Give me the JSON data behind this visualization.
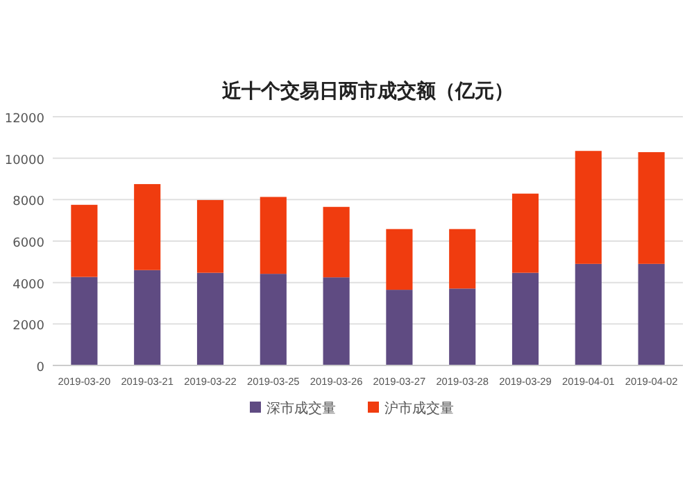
{
  "chart_data": {
    "type": "bar",
    "title": "近十个交易日两市成交额（亿元）",
    "stacked": true,
    "categories": [
      "2019-03-20",
      "2019-03-21",
      "2019-03-22",
      "2019-03-25",
      "2019-03-26",
      "2019-03-27",
      "2019-03-28",
      "2019-03-29",
      "2019-04-01",
      "2019-04-02"
    ],
    "series": [
      {
        "name": "深市成交量",
        "color": "#5f4b82",
        "values": [
          4270,
          4600,
          4470,
          4420,
          4250,
          3650,
          3710,
          4470,
          4900,
          4900
        ]
      },
      {
        "name": "沪市成交量",
        "color": "#f03c0f",
        "values": [
          3480,
          4150,
          3510,
          3710,
          3400,
          2930,
          2870,
          3820,
          5450,
          5390
        ]
      }
    ],
    "ylim": [
      0,
      12000
    ],
    "yticks": [
      0,
      2000,
      4000,
      6000,
      8000,
      10000,
      12000
    ],
    "grid": "y",
    "legend": "bottom"
  }
}
